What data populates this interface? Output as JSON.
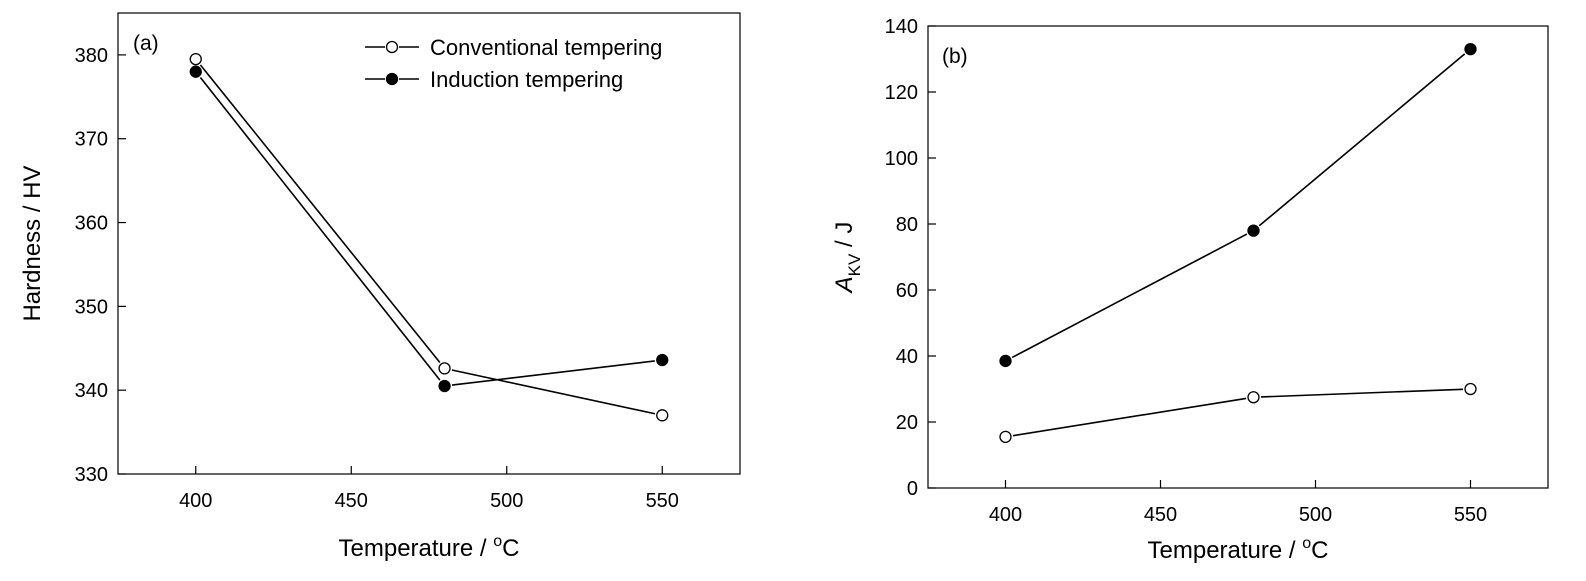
{
  "chart_data": [
    {
      "type": "line",
      "panel_label": "(a)",
      "xlabel": {
        "text": "Temperature / ",
        "sup": "o",
        "unit": "C"
      },
      "ylabel": "Hardness / HV",
      "xlim": [
        375,
        575
      ],
      "ylim": [
        330,
        385
      ],
      "xticks": [
        400,
        450,
        500,
        550
      ],
      "yticks": [
        330,
        340,
        350,
        360,
        370,
        380
      ],
      "legend": {
        "position": "top-right"
      },
      "series": [
        {
          "name": "Conventional tempering",
          "marker": "open-circle",
          "x": [
            400,
            480,
            550
          ],
          "y": [
            379.5,
            342.6,
            337.0
          ]
        },
        {
          "name": "Induction tempering",
          "marker": "filled-circle",
          "x": [
            400,
            480,
            550
          ],
          "y": [
            378.0,
            340.5,
            343.6
          ]
        }
      ]
    },
    {
      "type": "line",
      "panel_label": "(b)",
      "xlabel": {
        "text": "Temperature / ",
        "sup": "o",
        "unit": "C"
      },
      "ylabel": {
        "symbol": "A",
        "sub": "KV",
        "unit": " / J"
      },
      "xlim": [
        375,
        575
      ],
      "ylim": [
        0,
        140
      ],
      "xticks": [
        400,
        450,
        500,
        550
      ],
      "yticks": [
        0,
        20,
        40,
        60,
        80,
        100,
        120,
        140
      ],
      "series": [
        {
          "marker": "open-circle",
          "x": [
            400,
            480,
            550
          ],
          "y": [
            15.5,
            27.5,
            30.0
          ]
        },
        {
          "marker": "filled-circle",
          "x": [
            400,
            480,
            550
          ],
          "y": [
            38.5,
            78.0,
            133.0
          ]
        }
      ]
    }
  ]
}
